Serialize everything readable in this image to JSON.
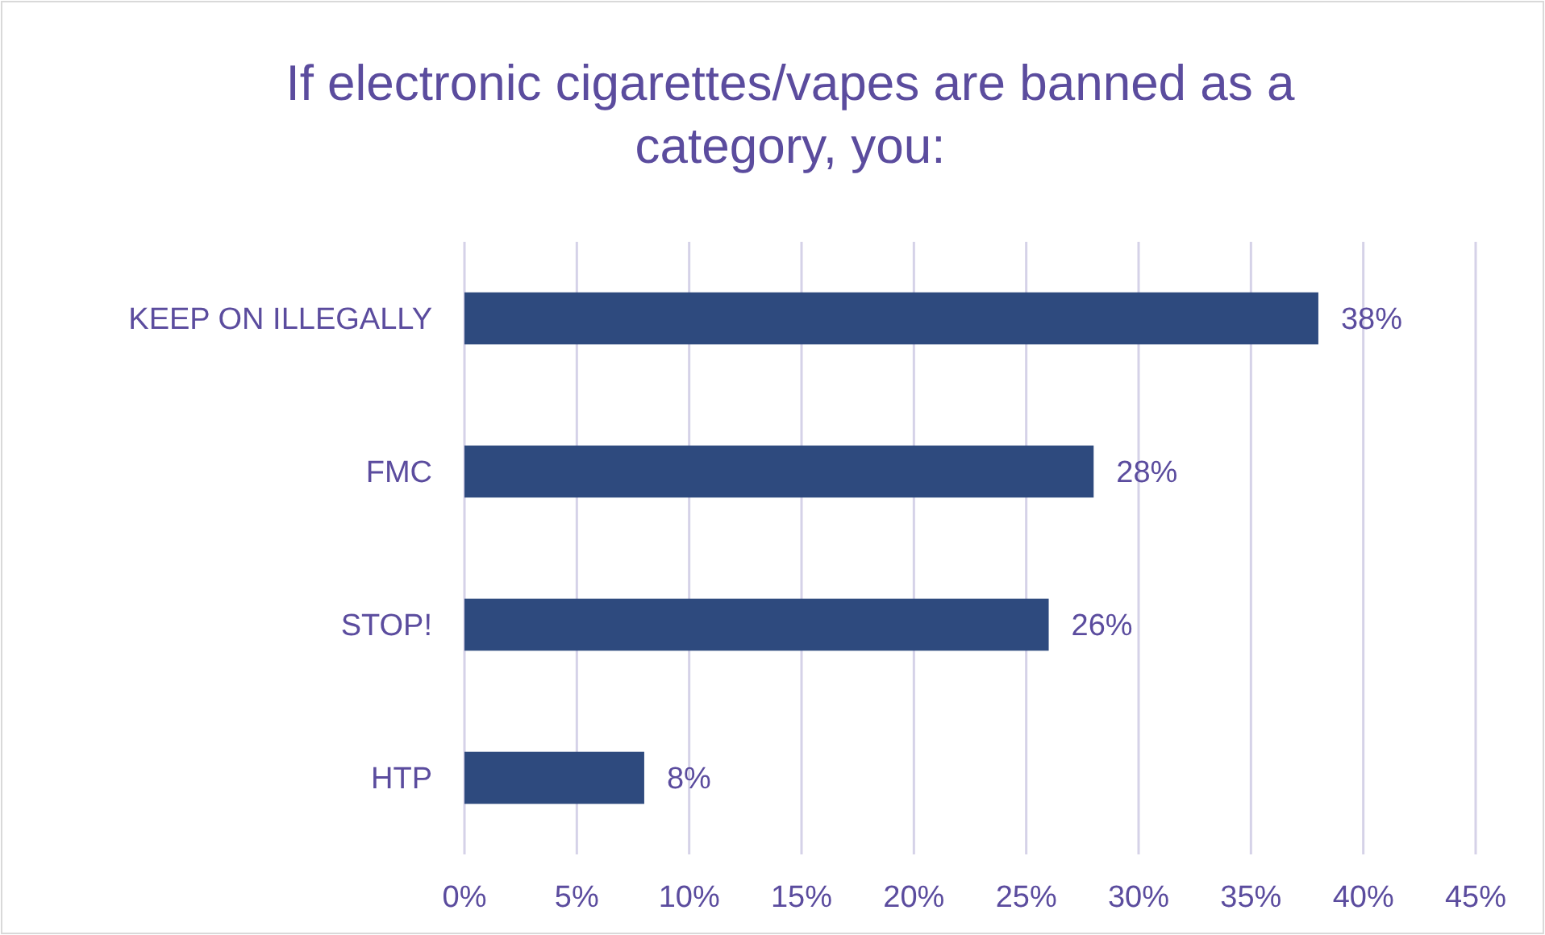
{
  "chart_data": {
    "type": "bar",
    "orientation": "horizontal",
    "title": "If electronic cigarettes/vapes are banned as a category, you:",
    "categories": [
      "KEEP ON ILLEGALLY",
      "FMC",
      "STOP!",
      "HTP"
    ],
    "values": [
      38,
      28,
      26,
      8
    ],
    "value_labels": [
      "38%",
      "28%",
      "26%",
      "8%"
    ],
    "color": "#2e4a7e",
    "xlim": [
      0,
      45
    ],
    "xticks": [
      {
        "value": 0,
        "label": "0%"
      },
      {
        "value": 5,
        "label": "5%"
      },
      {
        "value": 10,
        "label": "10%"
      },
      {
        "value": 15,
        "label": "15%"
      },
      {
        "value": 20,
        "label": "20%"
      },
      {
        "value": 25,
        "label": "25%"
      },
      {
        "value": 30,
        "label": "30%"
      },
      {
        "value": 35,
        "label": "35%"
      },
      {
        "value": 40,
        "label": "40%"
      },
      {
        "value": 45,
        "label": "45%"
      }
    ],
    "grid": "x"
  }
}
